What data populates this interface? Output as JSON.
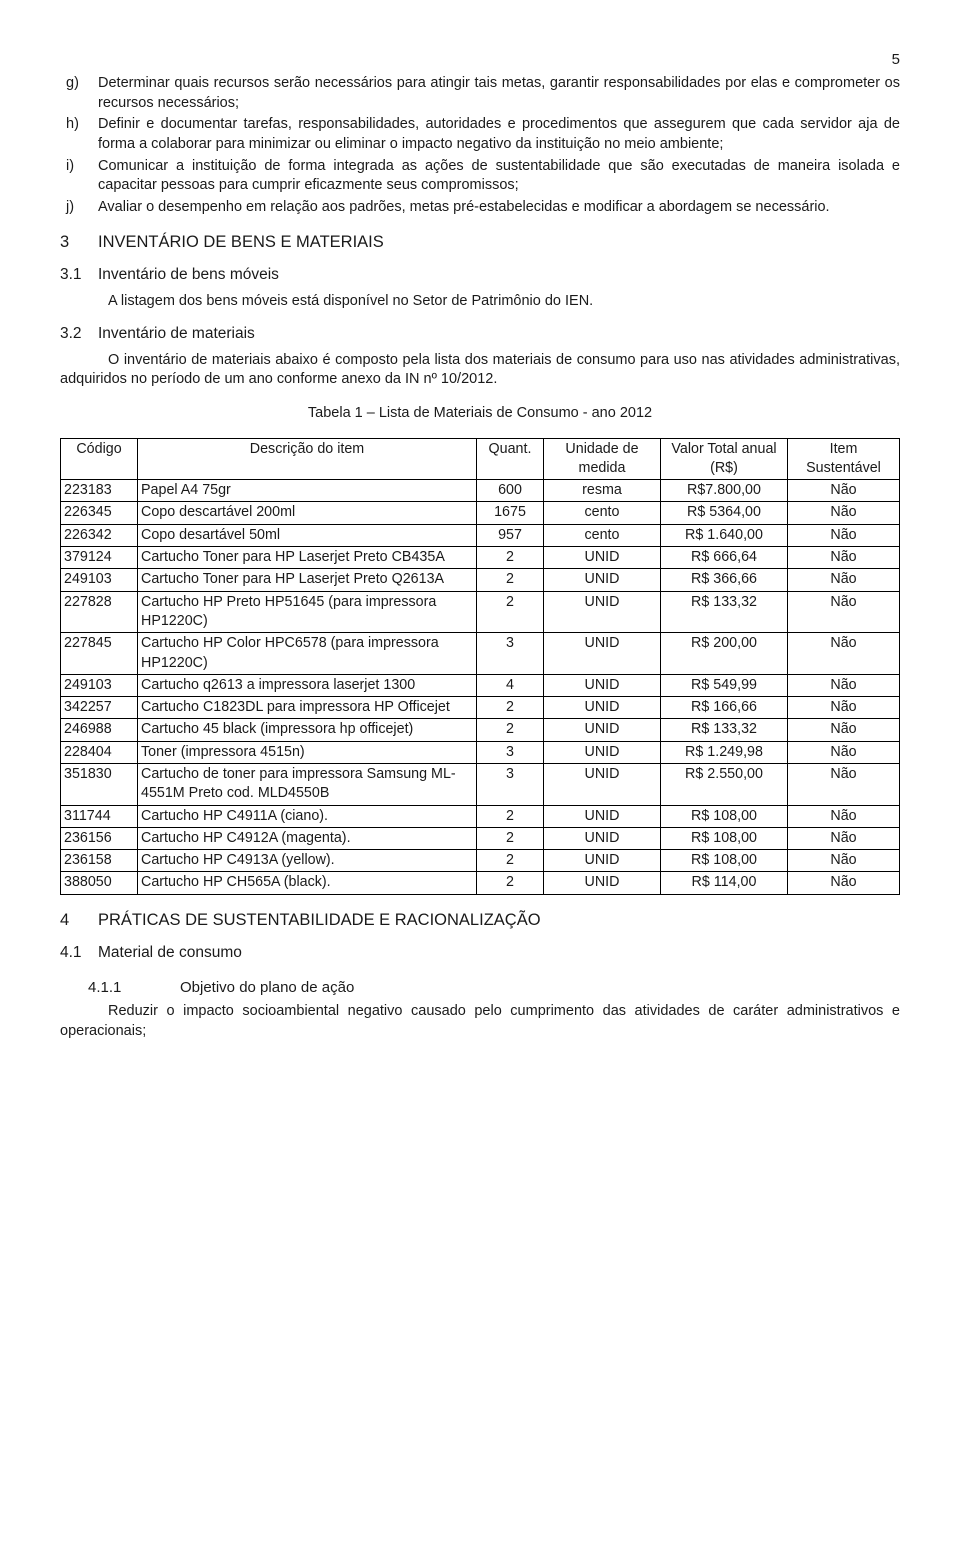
{
  "page_number": "5",
  "list": {
    "g": {
      "letter": "g)",
      "text": "Determinar quais recursos serão necessários para atingir tais metas, garantir responsabilidades por elas e comprometer os recursos necessários;"
    },
    "h": {
      "letter": "h)",
      "text": "Definir e documentar tarefas, responsabilidades, autoridades e procedimentos que assegurem que cada servidor aja de forma a colaborar para minimizar ou eliminar o impacto negativo da instituição no meio ambiente;"
    },
    "i": {
      "letter": "i)",
      "text": "Comunicar a instituição de forma integrada as ações de sustentabilidade que são executadas de maneira isolada e capacitar pessoas para cumprir eficazmente seus compromissos;"
    },
    "j": {
      "letter": "j)",
      "text": "Avaliar o desempenho em relação aos padrões, metas pré-estabelecidas e modificar a abordagem se necessário."
    }
  },
  "sec3": {
    "num": "3",
    "title": "INVENTÁRIO DE BENS E MATERIAIS"
  },
  "sec31": {
    "num": "3.1",
    "title": "Inventário de bens móveis",
    "text": "A listagem dos bens móveis está disponível no Setor de Patrimônio do IEN."
  },
  "sec32": {
    "num": "3.2",
    "title": "Inventário de materiais",
    "text": "O inventário de materiais abaixo é composto pela lista dos materiais de consumo para uso nas atividades administrativas, adquiridos no período de um ano conforme anexo da IN nº 10/2012."
  },
  "table_caption": "Tabela 1 – Lista de Materiais de Consumo - ano 2012",
  "table": {
    "headers": {
      "codigo": "Código",
      "desc": "Descrição do item",
      "quant": "Quant.",
      "unidade": "Unidade de medida",
      "valor": "Valor Total anual (R$)",
      "item": "Item Sustentável"
    },
    "rows": [
      {
        "c": "223183",
        "d": "Papel A4 75gr",
        "q": "600",
        "u": "resma",
        "v": "R$7.800,00",
        "s": "Não"
      },
      {
        "c": "226345",
        "d": "Copo descartável  200ml",
        "q": "1675",
        "u": "cento",
        "v": "R$ 5364,00",
        "s": "Não"
      },
      {
        "c": "226342",
        "d": "Copo desartável 50ml",
        "q": "957",
        "u": "cento",
        "v": "R$ 1.640,00",
        "s": "Não"
      },
      {
        "c": "379124",
        "d": "Cartucho Toner para HP Laserjet Preto CB435A",
        "q": "2",
        "u": "UNID",
        "v": "R$ 666,64",
        "s": "Não"
      },
      {
        "c": "249103",
        "d": "Cartucho Toner para HP Laserjet Preto Q2613A",
        "q": "2",
        "u": "UNID",
        "v": "R$ 366,66",
        "s": "Não"
      },
      {
        "c": "227828",
        "d": "Cartucho HP Preto HP51645 (para impressora HP1220C)",
        "q": "2",
        "u": "UNID",
        "v": "R$ 133,32",
        "s": "Não"
      },
      {
        "c": "227845",
        "d": "Cartucho HP Color HPC6578 (para impressora HP1220C)",
        "q": "3",
        "u": "UNID",
        "v": "R$ 200,00",
        "s": "Não"
      },
      {
        "c": "249103",
        "d": "Cartucho q2613 a impressora laserjet 1300",
        "q": "4",
        "u": "UNID",
        "v": "R$ 549,99",
        "s": "Não"
      },
      {
        "c": "342257",
        "d": "Cartucho C1823DL para impressora HP Officejet",
        "q": "2",
        "u": "UNID",
        "v": "R$ 166,66",
        "s": "Não"
      },
      {
        "c": "246988",
        "d": "Cartucho 45 black (impressora hp officejet)",
        "q": "2",
        "u": "UNID",
        "v": "R$ 133,32",
        "s": "Não"
      },
      {
        "c": "228404",
        "d": "Toner (impressora 4515n)",
        "q": "3",
        "u": "UNID",
        "v": "R$ 1.249,98",
        "s": "Não"
      },
      {
        "c": "351830",
        "d": "Cartucho de toner para impressora Samsung ML-4551M Preto cod. MLD4550B",
        "q": "3",
        "u": "UNID",
        "v": "R$ 2.550,00",
        "s": "Não"
      },
      {
        "c": "311744",
        "d": " Cartucho HP C4911A (ciano).",
        "q": "2",
        "u": "UNID",
        "v": "R$ 108,00",
        "s": "Não"
      },
      {
        "c": "236156",
        "d": " Cartucho HP C4912A (magenta).",
        "q": "2",
        "u": "UNID",
        "v": "R$ 108,00",
        "s": "Não"
      },
      {
        "c": "236158",
        "d": "Cartucho HP C4913A (yellow).",
        "q": "2",
        "u": "UNID",
        "v": "R$ 108,00",
        "s": "Não"
      },
      {
        "c": "388050",
        "d": "Cartucho HP CH565A (black).",
        "q": "2",
        "u": "UNID",
        "v": "R$ 114,00",
        "s": "Não"
      }
    ]
  },
  "sec4": {
    "num": "4",
    "title": "PRÁTICAS DE SUSTENTABILIDADE E RACIONALIZAÇÃO"
  },
  "sec41": {
    "num": "4.1",
    "title": "Material de consumo"
  },
  "sec411": {
    "num": "4.1.1",
    "title": "Objetivo do plano de ação",
    "text": "Reduzir o impacto socioambiental negativo causado pelo cumprimento das atividades de caráter administrativos e operacionais;"
  }
}
